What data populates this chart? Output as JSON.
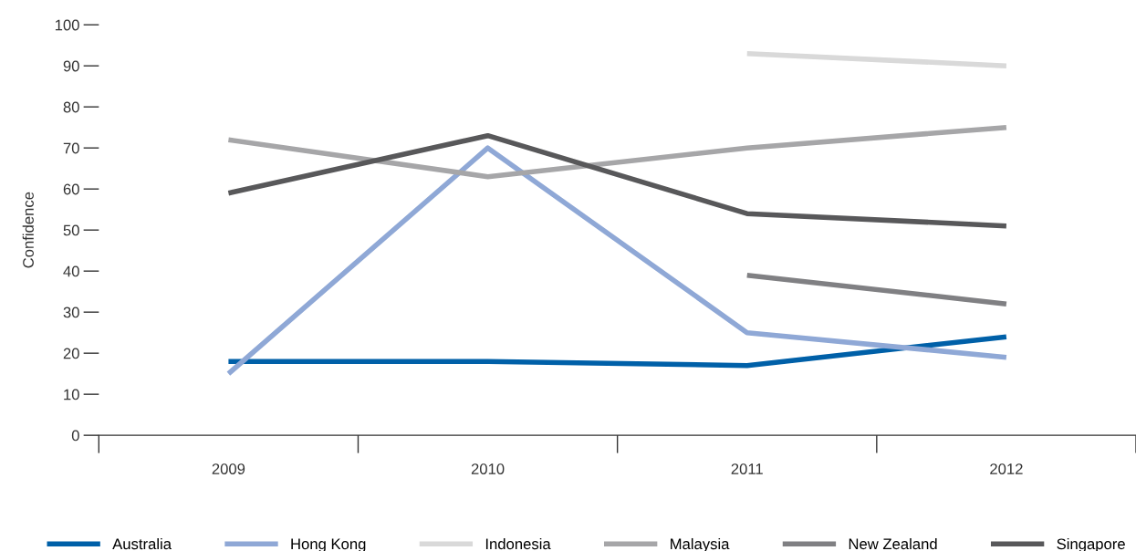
{
  "chart_data": {
    "type": "line",
    "ylabel": "Confidence",
    "categories": [
      "2009",
      "2010",
      "2011",
      "2012"
    ],
    "series": [
      {
        "name": "Australia",
        "color": "#0060a8",
        "values": [
          18,
          18,
          17,
          24
        ]
      },
      {
        "name": "Hong Kong",
        "color": "#8fa8d6",
        "values": [
          15,
          70,
          25,
          19
        ]
      },
      {
        "name": "Indonesia",
        "color": "#d9d9d9",
        "values": [
          null,
          null,
          93,
          90
        ]
      },
      {
        "name": "Malaysia",
        "color": "#a6a6a8",
        "values": [
          72,
          63,
          70,
          75
        ]
      },
      {
        "name": "New Zealand",
        "color": "#808083",
        "values": [
          null,
          null,
          39,
          32
        ]
      },
      {
        "name": "Singapore",
        "color": "#58585a",
        "values": [
          59,
          73,
          54,
          51
        ]
      }
    ],
    "ylim": [
      0,
      100
    ],
    "yticks": [
      0,
      10,
      20,
      30,
      40,
      50,
      60,
      70,
      80,
      90,
      100
    ],
    "grid": false,
    "legend": "bottom",
    "marker": "none",
    "line_style": "solid"
  }
}
